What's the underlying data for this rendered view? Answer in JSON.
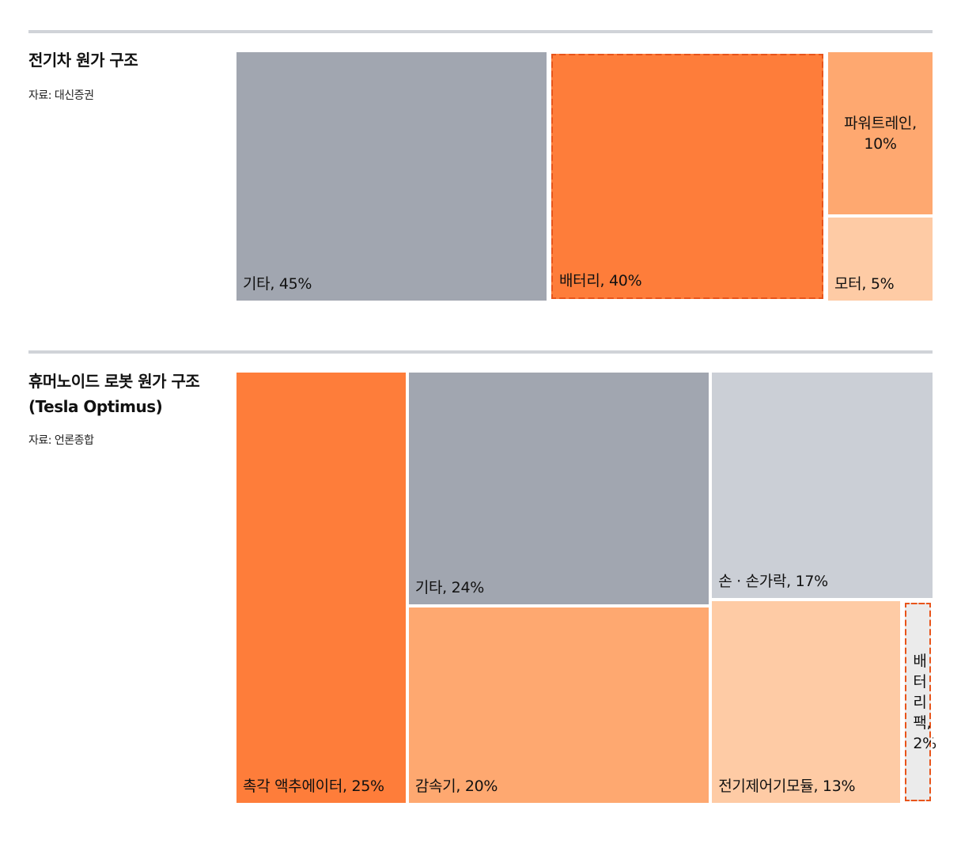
{
  "chart_data": [
    {
      "type": "treemap",
      "title": "전기차 원가 구조",
      "source": "자료: 대신증권",
      "values": [
        45,
        40,
        10,
        5
      ],
      "value_labels": [
        "기타, 45%",
        "배터리, 40%",
        "파워트레인, 10%",
        "모터, 5%"
      ],
      "colors": [
        "#a1a6b0",
        "#fe7d3a",
        "#fea870",
        "#fecba5"
      ],
      "highlight": [
        1
      ]
    },
    {
      "type": "treemap",
      "title": "휴머노이드 로봇 원가 구조\n(Tesla Optimus)",
      "source": "자료: 언론종합",
      "values": [
        25,
        24,
        20,
        17,
        13,
        2
      ],
      "value_labels": [
        "촉각 액추에이터, 25%",
        "기타, 24%",
        "감속기, 20%",
        "손 · 손가락, 17%",
        "전기제어기모듈, 13%",
        "배터리팩, 2%"
      ],
      "colors": [
        "#fe7d3a",
        "#a1a6b0",
        "#fea870",
        "#cbcfd6",
        "#fecba5",
        "#ebebeb"
      ],
      "highlight": [
        5
      ]
    }
  ]
}
